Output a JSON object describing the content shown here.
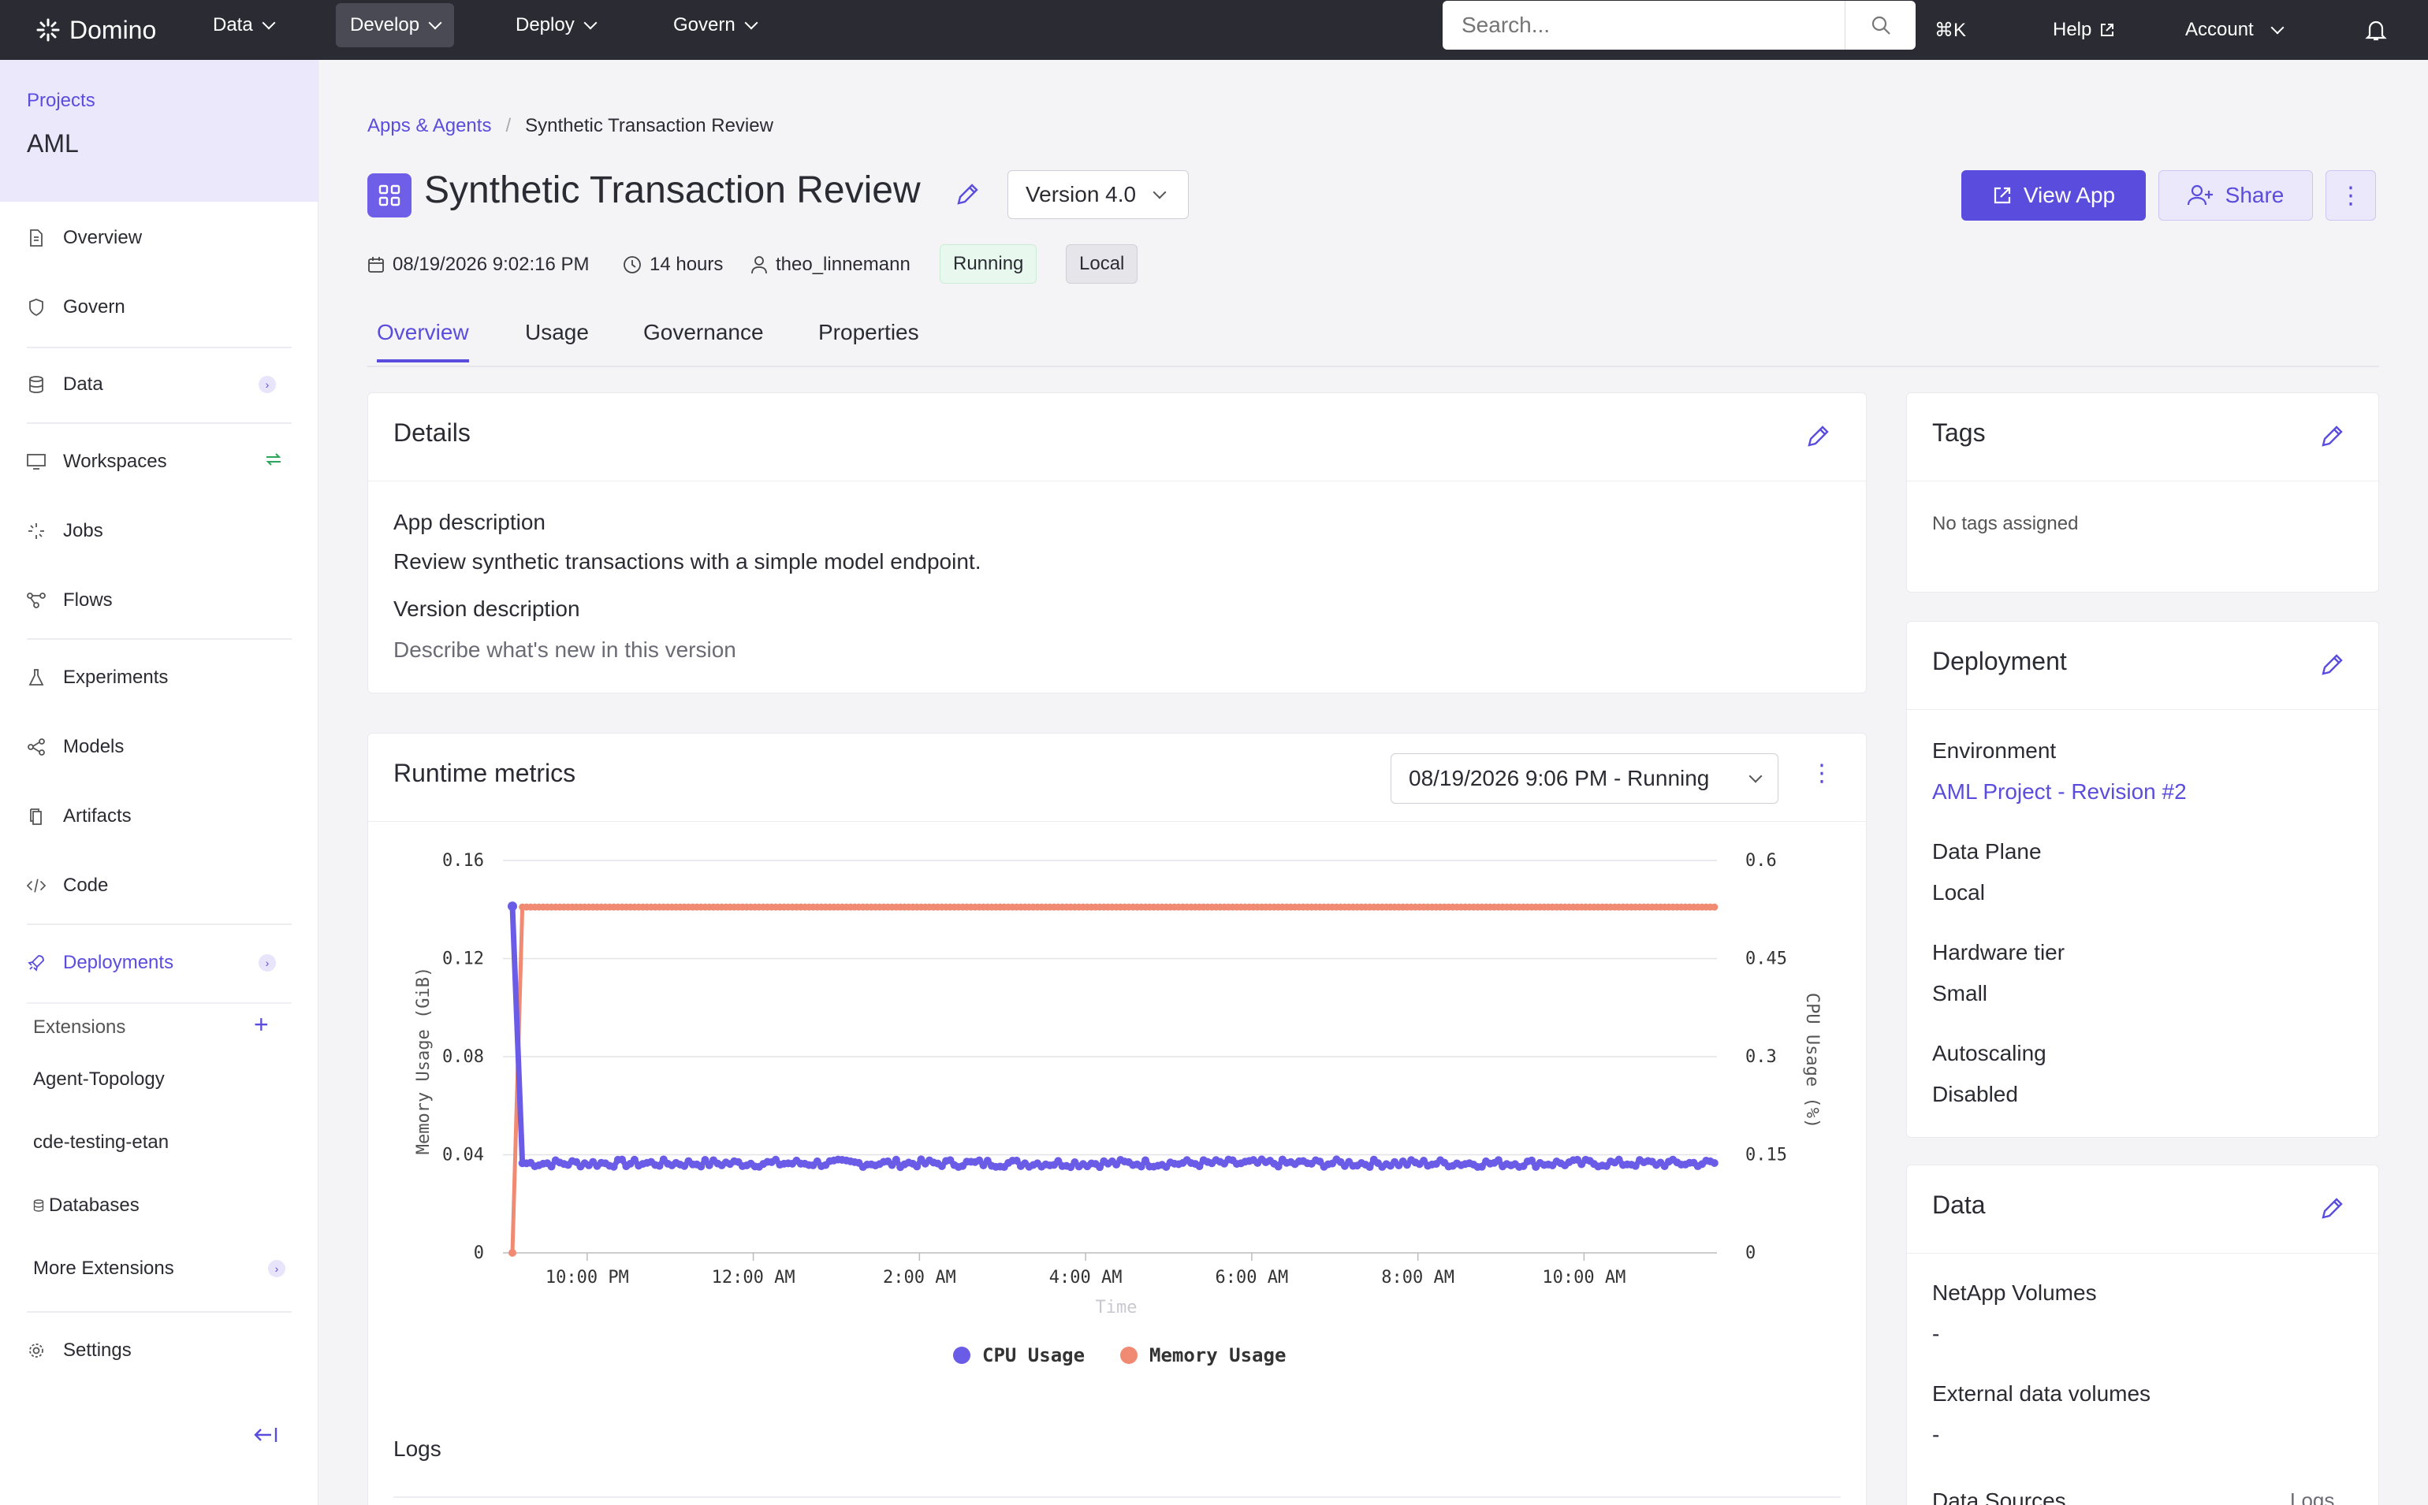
{
  "topbar": {
    "brand": "Domino",
    "nav": [
      {
        "label": "Data"
      },
      {
        "label": "Develop"
      },
      {
        "label": "Deploy"
      },
      {
        "label": "Govern"
      }
    ],
    "search_placeholder": "Search...",
    "shortcut": "⌘K",
    "help": "Help",
    "account": "Account"
  },
  "sidebar": {
    "section": "Projects",
    "project_name": "AML",
    "items": [
      {
        "label": "Overview",
        "icon": "document-icon"
      },
      {
        "label": "Govern",
        "icon": "shield-icon"
      },
      {
        "label": "Data",
        "icon": "database-icon"
      },
      {
        "label": "Workspaces",
        "icon": "monitor-icon"
      },
      {
        "label": "Jobs",
        "icon": "spinner-icon"
      },
      {
        "label": "Flows",
        "icon": "flow-icon"
      },
      {
        "label": "Experiments",
        "icon": "flask-icon"
      },
      {
        "label": "Models",
        "icon": "model-icon"
      },
      {
        "label": "Artifacts",
        "icon": "files-icon"
      },
      {
        "label": "Code",
        "icon": "code-icon"
      },
      {
        "label": "Deployments",
        "icon": "rocket-icon"
      }
    ],
    "extensions_label": "Extensions",
    "extensions": [
      "Agent-Topology",
      "cde-testing-etan",
      "Databases",
      "More Extensions"
    ],
    "settings": "Settings"
  },
  "breadcrumb": {
    "parent": "Apps & Agents",
    "current": "Synthetic Transaction Review"
  },
  "app": {
    "title": "Synthetic Transaction Review",
    "version": "Version 4.0",
    "view_app": "View App",
    "share": "Share",
    "date": "08/19/2026 9:02:16 PM",
    "duration": "14 hours",
    "owner": "theo_linnemann",
    "status": "Running",
    "location": "Local"
  },
  "tabs": [
    "Overview",
    "Usage",
    "Governance",
    "Properties"
  ],
  "details": {
    "title": "Details",
    "app_desc_label": "App description",
    "app_desc": "Review synthetic transactions with a simple model endpoint.",
    "version_desc_label": "Version description",
    "version_desc_placeholder": "Describe what's new in this version"
  },
  "runtime": {
    "title": "Runtime metrics",
    "run_select": "08/19/2026 9:06 PM - Running",
    "logs": "Logs"
  },
  "tags": {
    "title": "Tags",
    "empty": "No tags assigned"
  },
  "deployment": {
    "title": "Deployment",
    "env_label": "Environment",
    "env_value": "AML Project - Revision #2",
    "plane_label": "Data Plane",
    "plane_value": "Local",
    "hw_label": "Hardware tier",
    "hw_value": "Small",
    "auto_label": "Autoscaling",
    "auto_value": "Disabled"
  },
  "data_card": {
    "title": "Data",
    "netapp_label": "NetApp Volumes",
    "netapp_value": "-",
    "ext_label": "External data volumes",
    "ext_value": "-",
    "sources_label": "Data Sources",
    "sources_link": "Logs"
  },
  "colors": {
    "accent": "#5a4dde",
    "cpu": "#6b5ce7",
    "memory": "#f08a72"
  },
  "chart_data": {
    "type": "line",
    "xlabel": "Time",
    "ylabel_left": "Memory Usage (GiB)",
    "ylabel_right": "CPU Usage (%)",
    "y_left_ticks": [
      "0.16",
      "0.12",
      "0.08",
      "0.04",
      "0"
    ],
    "y_right_ticks": [
      "0.6",
      "0.45",
      "0.3",
      "0.15",
      "0"
    ],
    "ylim_left": [
      0,
      0.16
    ],
    "ylim_right": [
      0,
      0.6
    ],
    "x_ticks": [
      "10:00 PM",
      "12:00 AM",
      "2:00 AM",
      "4:00 AM",
      "6:00 AM",
      "8:00 AM",
      "10:00 AM"
    ],
    "x_range_hours": [
      21.1,
      35.6
    ],
    "x_tick_hours": [
      22,
      24,
      26,
      28,
      30,
      32,
      34
    ],
    "legend": [
      "CPU Usage",
      "Memory Usage"
    ],
    "series": [
      {
        "name": "CPU Usage",
        "axis": "right",
        "start": {
          "x": 21.1,
          "y": 0.53
        },
        "steady": 0.137
      },
      {
        "name": "Memory Usage",
        "axis": "left",
        "start": {
          "x": 21.1,
          "y": 0
        },
        "steady": 0.141
      }
    ]
  }
}
